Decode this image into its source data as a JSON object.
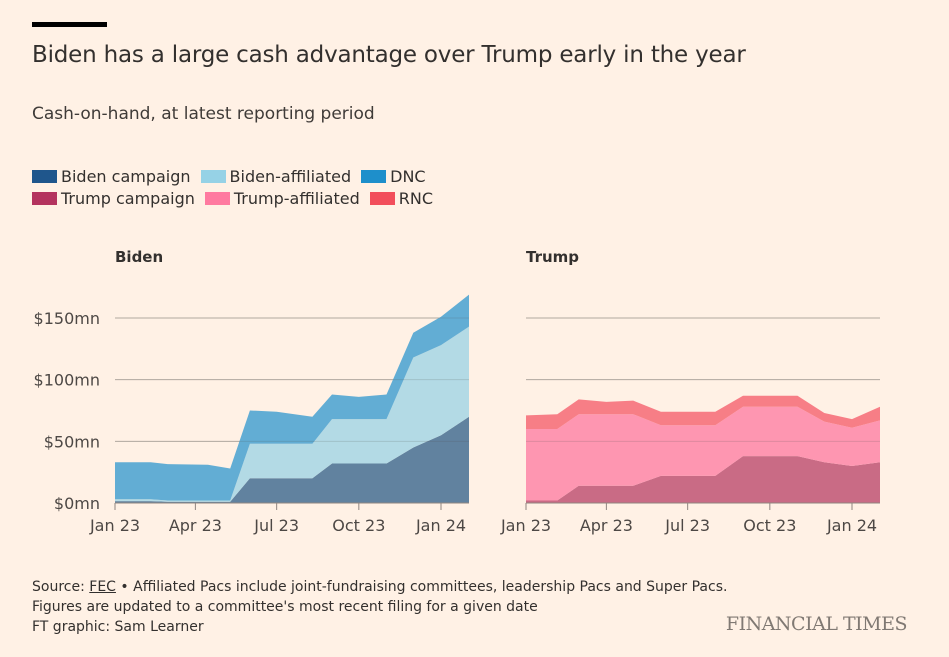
{
  "header": {
    "title": "Biden has a large cash advantage over Trump early in the year",
    "subtitle": "Cash-on-hand, at latest reporting period"
  },
  "legend": {
    "rows": [
      [
        {
          "label": "Biden campaign",
          "color": "#1f568c"
        },
        {
          "label": "Biden-affiliated",
          "color": "#96d2e6"
        },
        {
          "label": "DNC",
          "color": "#1e8fcb"
        }
      ],
      [
        {
          "label": "Trump campaign",
          "color": "#b4335e"
        },
        {
          "label": "Trump-affiliated",
          "color": "#ff7aa0"
        },
        {
          "label": "RNC",
          "color": "#f24e5b"
        }
      ]
    ]
  },
  "footer": {
    "source_prefix": "Source: ",
    "source_link": "FEC",
    "source_rest": " • Affiliated Pacs include joint-fundraising committees, leadership Pacs and Super Pacs.",
    "line2": "Figures are updated to a committee's most recent filing for a given date",
    "line3": "FT graphic: Sam Learner",
    "brand": "FINANCIAL TIMES"
  },
  "chart_data": [
    {
      "type": "area",
      "stacked": true,
      "title": "Biden",
      "xlabel": "",
      "ylabel": "",
      "x_ticks": [
        "Jan 23",
        "Apr 23",
        "Jul 23",
        "Oct 23",
        "Jan 24"
      ],
      "y_ticks": [
        "$0mn",
        "$50mn",
        "$100mn",
        "$150mn"
      ],
      "ylim": [
        0,
        150
      ],
      "grid": true,
      "x": [
        "2023-01-01",
        "2023-02-10",
        "2023-03-01",
        "2023-04-15",
        "2023-05-10",
        "2023-06-01",
        "2023-07-01",
        "2023-08-10",
        "2023-09-01",
        "2023-10-01",
        "2023-11-01",
        "2023-12-01",
        "2024-01-01",
        "2024-02-01"
      ],
      "series": [
        {
          "name": "Biden campaign",
          "color": "#61829f",
          "values": [
            1.5,
            1.5,
            1,
            1,
            1,
            20,
            20,
            20,
            32,
            32,
            32,
            45,
            55,
            70
          ]
        },
        {
          "name": "Biden-affiliated",
          "color": "#b3dae5",
          "values": [
            1.5,
            1.5,
            1,
            1,
            1,
            28,
            28,
            28,
            36,
            36,
            36,
            73,
            73,
            73
          ]
        },
        {
          "name": "DNC",
          "color": "#62add4",
          "values": [
            30,
            30,
            29.5,
            29,
            26,
            27,
            26,
            22,
            20,
            18,
            20,
            20,
            23,
            26
          ]
        }
      ]
    },
    {
      "type": "area",
      "stacked": true,
      "title": "Trump",
      "xlabel": "",
      "ylabel": "",
      "x_ticks": [
        "Jan 23",
        "Apr 23",
        "Jul 23",
        "Oct 23",
        "Jan 24"
      ],
      "y_ticks": [
        "$0mn",
        "$50mn",
        "$100mn",
        "$150mn"
      ],
      "ylim": [
        0,
        150
      ],
      "grid": true,
      "x": [
        "2023-01-01",
        "2023-02-05",
        "2023-03-01",
        "2023-04-01",
        "2023-05-01",
        "2023-06-01",
        "2023-07-01",
        "2023-08-01",
        "2023-09-01",
        "2023-10-01",
        "2023-11-01",
        "2023-12-01",
        "2024-01-01",
        "2024-02-01"
      ],
      "series": [
        {
          "name": "Trump campaign",
          "color": "#c96b85",
          "values": [
            2,
            2,
            14,
            14,
            14,
            22,
            22,
            22,
            38,
            38,
            38,
            33,
            30,
            33
          ]
        },
        {
          "name": "Trump-affiliated",
          "color": "#fe96b1",
          "values": [
            58,
            58,
            58,
            58,
            58,
            41,
            41,
            41,
            40,
            40,
            40,
            33,
            31,
            34
          ]
        },
        {
          "name": "RNC",
          "color": "#f77e86",
          "values": [
            11,
            12,
            12,
            10,
            11,
            11,
            11,
            11,
            9,
            9,
            9,
            7,
            7,
            11
          ]
        }
      ]
    }
  ]
}
